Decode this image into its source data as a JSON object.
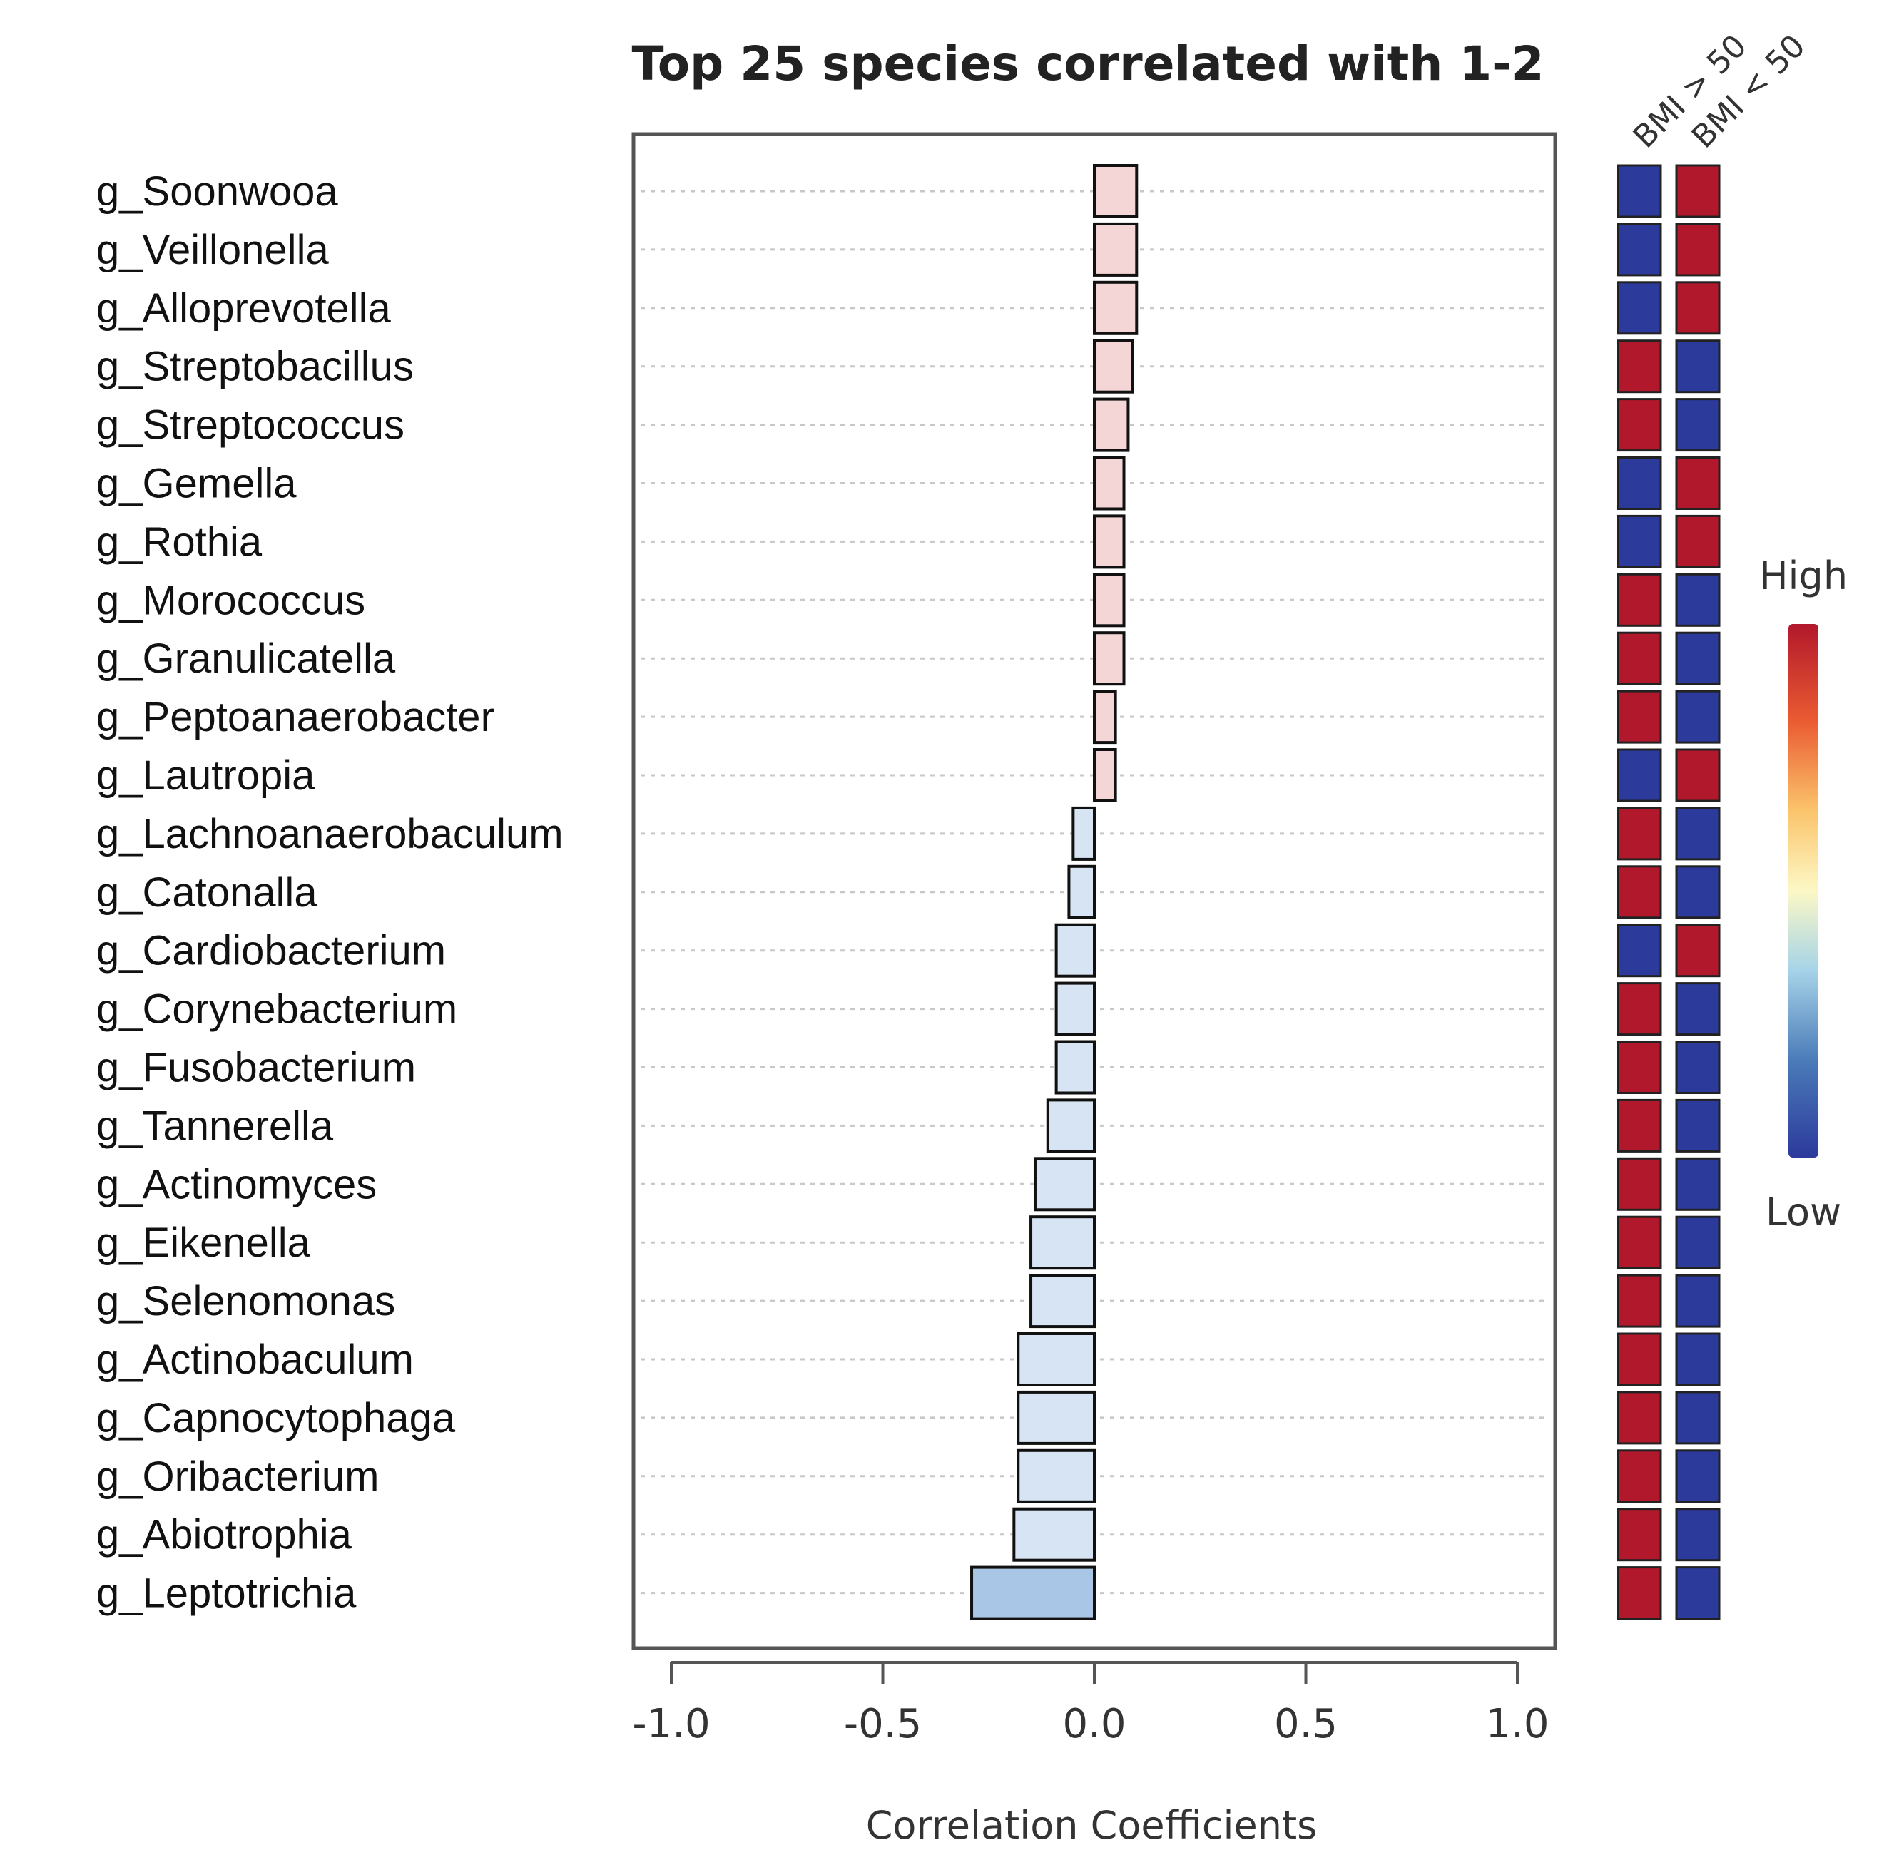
{
  "chart_data": {
    "type": "bar",
    "orientation": "horizontal",
    "title": "Top 25 species correlated with 1-2",
    "xlabel": "Correlation Coefficients",
    "xlim": [
      -1.0,
      1.0
    ],
    "xticks": [
      "-1.0",
      "-0.5",
      "0.0",
      "0.5",
      "1.0"
    ],
    "categories": [
      "g_Soonwooa",
      "g_Veillonella",
      "g_Alloprevotella",
      "g_Streptobacillus",
      "g_Streptococcus",
      "g_Gemella",
      "g_Rothia",
      "g_Morococcus",
      "g_Granulicatella",
      "g_Peptoanaerobacter",
      "g_Lautropia",
      "g_Lachnoanaerobaculum",
      "g_Catonalla",
      "g_Cardiobacterium",
      "g_Corynebacterium",
      "g_Fusobacterium",
      "g_Tannerella",
      "g_Actinomyces",
      "g_Eikenella",
      "g_Selenomonas",
      "g_Actinobaculum",
      "g_Capnocytophaga",
      "g_Oribacterium",
      "g_Abiotrophia",
      "g_Leptotrichia"
    ],
    "values": [
      0.1,
      0.1,
      0.1,
      0.09,
      0.08,
      0.07,
      0.07,
      0.07,
      0.07,
      0.05,
      0.05,
      -0.05,
      -0.06,
      -0.09,
      -0.09,
      -0.09,
      -0.11,
      -0.14,
      -0.15,
      -0.15,
      -0.18,
      -0.18,
      -0.18,
      -0.19,
      -0.29
    ],
    "groups": [
      "BMI > 50",
      "BMI < 50"
    ],
    "group_levels": [
      [
        "Low",
        "High"
      ],
      [
        "Low",
        "High"
      ],
      [
        "Low",
        "High"
      ],
      [
        "High",
        "Low"
      ],
      [
        "High",
        "Low"
      ],
      [
        "Low",
        "High"
      ],
      [
        "Low",
        "High"
      ],
      [
        "High",
        "Low"
      ],
      [
        "High",
        "Low"
      ],
      [
        "High",
        "Low"
      ],
      [
        "Low",
        "High"
      ],
      [
        "High",
        "Low"
      ],
      [
        "High",
        "Low"
      ],
      [
        "Low",
        "High"
      ],
      [
        "High",
        "Low"
      ],
      [
        "High",
        "Low"
      ],
      [
        "High",
        "Low"
      ],
      [
        "High",
        "Low"
      ],
      [
        "High",
        "Low"
      ],
      [
        "High",
        "Low"
      ],
      [
        "High",
        "Low"
      ],
      [
        "High",
        "Low"
      ],
      [
        "High",
        "Low"
      ],
      [
        "High",
        "Low"
      ],
      [
        "High",
        "Low"
      ]
    ],
    "legend": {
      "high_label": "High",
      "low_label": "Low",
      "placement": "right"
    },
    "colors": {
      "positive_bar": "#f5d6d6",
      "negative_bar_light": "#d6e4f3",
      "negative_bar_dark": "#a9c6e6",
      "high": "#b2182b",
      "low": "#2c3a9c",
      "bar_edge": "#111111",
      "grid": "#c8c8c8",
      "frame": "#555555"
    }
  }
}
